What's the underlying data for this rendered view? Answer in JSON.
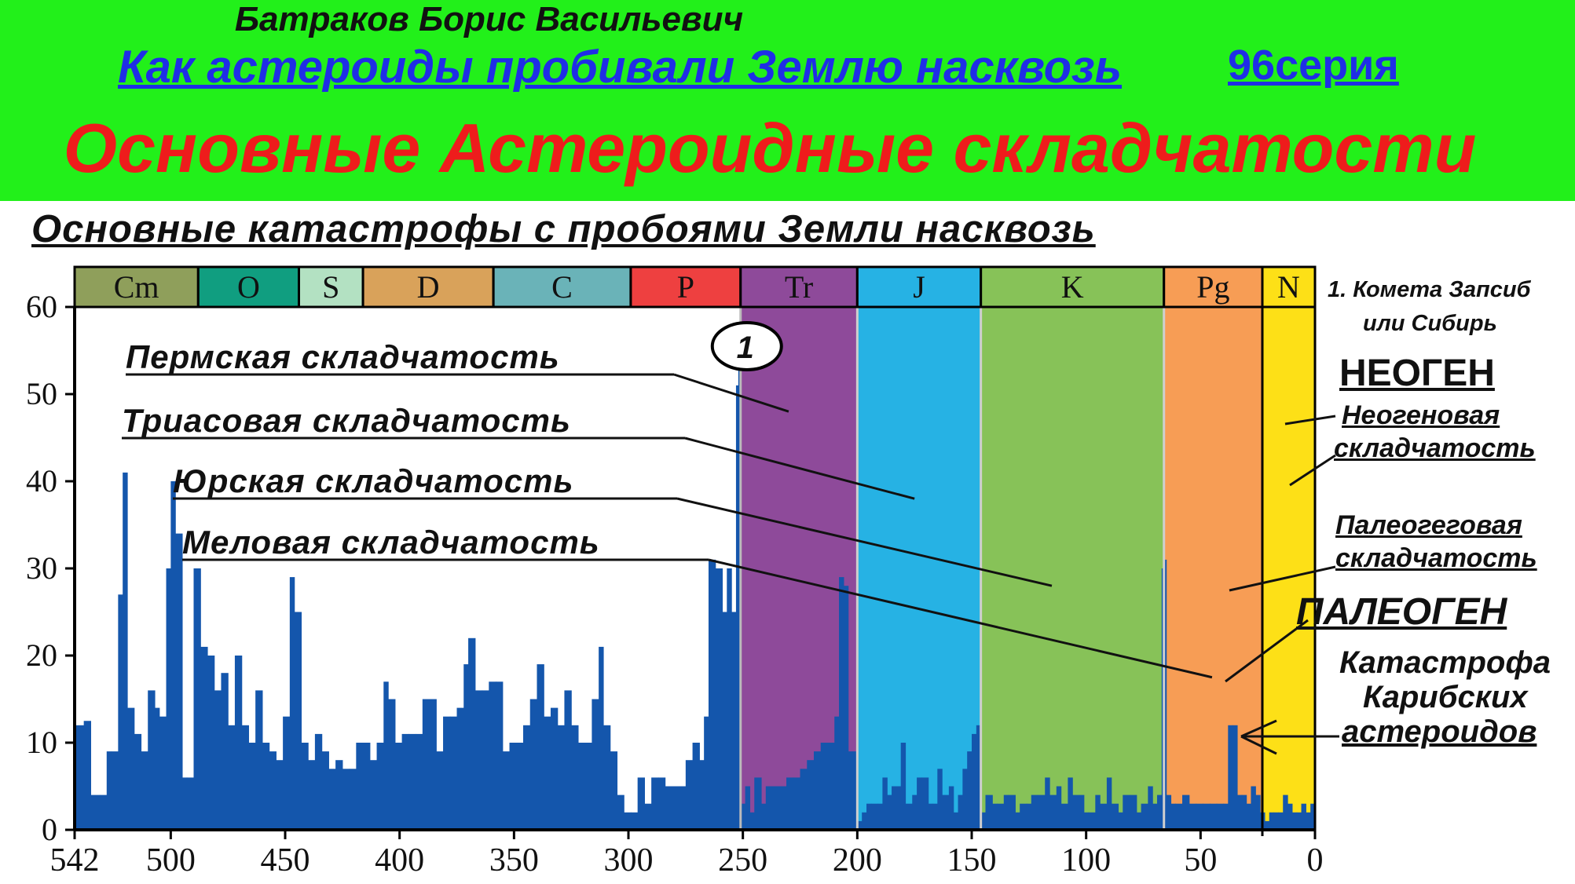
{
  "header": {
    "author": "Батраков Борис Васильевич",
    "series_title": "Как астероиды пробивали Землю насквозь",
    "episode": "96серия",
    "main_title": "Основные Астероидные складчатости",
    "subtitle": "Основные катастрофы с пробоями Земли насквозь"
  },
  "colors": {
    "banner": "#22f01a",
    "bars": "#1456ac",
    "main_title": "#ee1c1c",
    "links": "#1f2ee6"
  },
  "chart_data": {
    "type": "bar",
    "x_reversed": true,
    "xlim": [
      542,
      0
    ],
    "ylim": [
      0,
      60
    ],
    "x_ticks": [
      542,
      500,
      450,
      400,
      350,
      300,
      250,
      200,
      150,
      100,
      50,
      0
    ],
    "y_ticks": [
      0,
      10,
      20,
      30,
      40,
      50,
      60
    ],
    "periods": [
      {
        "label": "Cm",
        "start": 542,
        "end": 488,
        "color": "#8f9f5b"
      },
      {
        "label": "O",
        "start": 488,
        "end": 444,
        "color": "#109e80"
      },
      {
        "label": "S",
        "start": 444,
        "end": 416,
        "color": "#b3e1c2"
      },
      {
        "label": "D",
        "start": 416,
        "end": 359,
        "color": "#d9a25a"
      },
      {
        "label": "C",
        "start": 359,
        "end": 299,
        "color": "#6ab3b8"
      },
      {
        "label": "P",
        "start": 299,
        "end": 251,
        "color": "#ee4040"
      },
      {
        "label": "Tr",
        "start": 251,
        "end": 200,
        "color": "#8e4a9a"
      },
      {
        "label": "J",
        "start": 200,
        "end": 146,
        "color": "#26b2e4"
      },
      {
        "label": "K",
        "start": 146,
        "end": 66,
        "color": "#87c258"
      },
      {
        "label": "Pg",
        "start": 66,
        "end": 23,
        "color": "#f79d55"
      },
      {
        "label": "N",
        "start": 23,
        "end": 0,
        "color": "#fde017"
      }
    ],
    "highlight_spans": [
      {
        "start": 251,
        "end": 200,
        "color": "#8e4a9a"
      },
      {
        "start": 200,
        "end": 146,
        "color": "#26b2e4"
      },
      {
        "start": 146,
        "end": 66,
        "color": "#87c258"
      },
      {
        "start": 66,
        "end": 23,
        "color": "#f79d55"
      },
      {
        "start": 23,
        "end": 0,
        "color": "#fde017"
      }
    ],
    "series": [
      {
        "points": [
          [
            542,
            12
          ],
          [
            538,
            12.5
          ],
          [
            535,
            4
          ],
          [
            531,
            4
          ],
          [
            528,
            9
          ],
          [
            526,
            9
          ],
          [
            523,
            27
          ],
          [
            521,
            41
          ],
          [
            519,
            14
          ],
          [
            516,
            11
          ],
          [
            513,
            9
          ],
          [
            510,
            16
          ],
          [
            507,
            14
          ],
          [
            505,
            13
          ],
          [
            502,
            30
          ],
          [
            500,
            40
          ],
          [
            498,
            34
          ],
          [
            495,
            6
          ],
          [
            493,
            6
          ],
          [
            490,
            30
          ],
          [
            487,
            21
          ],
          [
            484,
            20
          ],
          [
            481,
            16
          ],
          [
            478,
            18
          ],
          [
            475,
            12
          ],
          [
            472,
            20
          ],
          [
            469,
            12
          ],
          [
            466,
            10
          ],
          [
            463,
            16
          ],
          [
            460,
            10
          ],
          [
            457,
            9
          ],
          [
            454,
            8
          ],
          [
            451,
            13
          ],
          [
            448,
            29
          ],
          [
            446,
            25
          ],
          [
            443,
            10
          ],
          [
            440,
            8
          ],
          [
            437,
            11
          ],
          [
            434,
            9
          ],
          [
            431,
            7
          ],
          [
            428,
            8
          ],
          [
            425,
            7
          ],
          [
            422,
            7
          ],
          [
            419,
            10
          ],
          [
            416,
            10
          ],
          [
            413,
            8
          ],
          [
            410,
            10
          ],
          [
            407,
            17
          ],
          [
            405,
            15
          ],
          [
            402,
            10
          ],
          [
            399,
            11
          ],
          [
            396,
            11
          ],
          [
            393,
            11
          ],
          [
            390,
            15
          ],
          [
            387,
            15
          ],
          [
            384,
            9
          ],
          [
            381,
            13
          ],
          [
            378,
            13
          ],
          [
            375,
            14
          ],
          [
            372,
            19
          ],
          [
            370,
            22
          ],
          [
            367,
            16
          ],
          [
            364,
            16
          ],
          [
            361,
            17
          ],
          [
            358,
            17
          ],
          [
            355,
            9
          ],
          [
            352,
            10
          ],
          [
            349,
            10
          ],
          [
            346,
            12
          ],
          [
            343,
            15
          ],
          [
            340,
            19
          ],
          [
            337,
            13
          ],
          [
            334,
            14
          ],
          [
            331,
            12
          ],
          [
            328,
            16
          ],
          [
            325,
            12
          ],
          [
            322,
            10
          ],
          [
            319,
            10
          ],
          [
            316,
            15
          ],
          [
            313,
            21
          ],
          [
            311,
            12
          ],
          [
            308,
            9
          ],
          [
            305,
            4
          ],
          [
            302,
            2
          ],
          [
            299,
            2
          ],
          [
            296,
            6
          ],
          [
            293,
            3
          ],
          [
            290,
            6
          ],
          [
            287,
            6
          ],
          [
            284,
            5
          ],
          [
            281,
            5
          ],
          [
            278,
            5
          ],
          [
            275,
            8
          ],
          [
            272,
            10
          ],
          [
            269,
            8
          ],
          [
            267,
            13
          ],
          [
            265,
            31
          ],
          [
            262,
            30
          ],
          [
            259,
            25
          ],
          [
            257,
            30
          ],
          [
            255,
            25
          ],
          [
            253,
            51
          ],
          [
            252,
            53
          ],
          [
            251,
            3
          ],
          [
            249,
            5
          ],
          [
            247,
            2
          ],
          [
            245,
            6
          ],
          [
            242,
            3
          ],
          [
            240,
            5
          ],
          [
            237,
            5
          ],
          [
            234,
            5
          ],
          [
            231,
            6
          ],
          [
            228,
            6
          ],
          [
            225,
            7
          ],
          [
            222,
            8
          ],
          [
            219,
            9
          ],
          [
            216,
            10
          ],
          [
            213,
            10
          ],
          [
            210,
            13
          ],
          [
            208,
            29
          ],
          [
            206,
            28
          ],
          [
            204,
            9
          ],
          [
            202,
            9
          ],
          [
            200,
            1
          ],
          [
            198,
            2
          ],
          [
            196,
            3
          ],
          [
            194,
            3
          ],
          [
            191,
            3
          ],
          [
            189,
            6
          ],
          [
            187,
            4
          ],
          [
            185,
            5
          ],
          [
            183,
            5
          ],
          [
            181,
            10
          ],
          [
            179,
            3
          ],
          [
            176,
            4
          ],
          [
            174,
            6
          ],
          [
            172,
            6
          ],
          [
            169,
            3
          ],
          [
            167,
            3
          ],
          [
            165,
            7
          ],
          [
            163,
            4
          ],
          [
            160,
            5
          ],
          [
            158,
            2
          ],
          [
            156,
            4
          ],
          [
            154,
            7
          ],
          [
            152,
            9
          ],
          [
            150,
            11
          ],
          [
            148,
            12
          ],
          [
            146,
            2
          ],
          [
            144,
            4
          ],
          [
            141,
            3
          ],
          [
            139,
            3
          ],
          [
            136,
            4
          ],
          [
            134,
            4
          ],
          [
            131,
            2
          ],
          [
            129,
            3
          ],
          [
            126,
            3
          ],
          [
            124,
            4
          ],
          [
            121,
            4
          ],
          [
            118,
            6
          ],
          [
            116,
            4
          ],
          [
            113,
            5
          ],
          [
            111,
            3
          ],
          [
            108,
            6
          ],
          [
            106,
            4
          ],
          [
            103,
            4
          ],
          [
            101,
            2
          ],
          [
            99,
            2
          ],
          [
            96,
            4
          ],
          [
            94,
            3
          ],
          [
            91,
            6
          ],
          [
            89,
            3
          ],
          [
            86,
            2
          ],
          [
            84,
            4
          ],
          [
            81,
            4
          ],
          [
            78,
            2
          ],
          [
            76,
            3
          ],
          [
            73,
            5
          ],
          [
            71,
            3
          ],
          [
            69,
            4
          ],
          [
            67,
            30
          ],
          [
            66,
            31
          ],
          [
            65,
            4
          ],
          [
            63,
            3
          ],
          [
            61,
            3
          ],
          [
            58,
            4
          ],
          [
            55,
            3
          ],
          [
            52,
            3
          ],
          [
            49,
            3
          ],
          [
            46,
            3
          ],
          [
            43,
            3
          ],
          [
            40,
            3
          ],
          [
            38,
            12
          ],
          [
            36,
            12
          ],
          [
            34,
            4
          ],
          [
            32,
            4
          ],
          [
            30,
            3
          ],
          [
            28,
            5
          ],
          [
            26,
            4
          ],
          [
            24,
            2
          ],
          [
            22,
            1
          ],
          [
            20,
            2
          ],
          [
            18,
            2
          ],
          [
            16,
            2
          ],
          [
            14,
            4
          ],
          [
            12,
            3
          ],
          [
            10,
            2
          ],
          [
            8,
            2
          ],
          [
            6,
            3
          ],
          [
            4,
            2
          ],
          [
            2,
            3
          ],
          [
            0,
            3
          ]
        ]
      }
    ],
    "event_marker": {
      "x": 251,
      "label": "1"
    },
    "annotations": [
      {
        "text": "Пермская складчатость",
        "x": 230,
        "y": 48
      },
      {
        "text": "Триасовая складчатость",
        "x": 175,
        "y": 38
      },
      {
        "text": "Юрская складчатость",
        "x": 115,
        "y": 28
      },
      {
        "text": "Меловая складчатость",
        "x": 45,
        "y": 17.5
      }
    ],
    "side_notes": {
      "comet": [
        "1. Комета Запсиб",
        "или Сибирь"
      ],
      "neogene_heading": "НЕОГЕН",
      "neogene_folding": [
        "Неогеновая",
        "складчатость"
      ],
      "paleogene_folding": [
        "Палеогеговая",
        "складчатость"
      ],
      "paleogene_heading": "ПАЛЕОГЕН",
      "caribbean": [
        "Катастрофа",
        "Карибских",
        "астероидов"
      ]
    }
  }
}
